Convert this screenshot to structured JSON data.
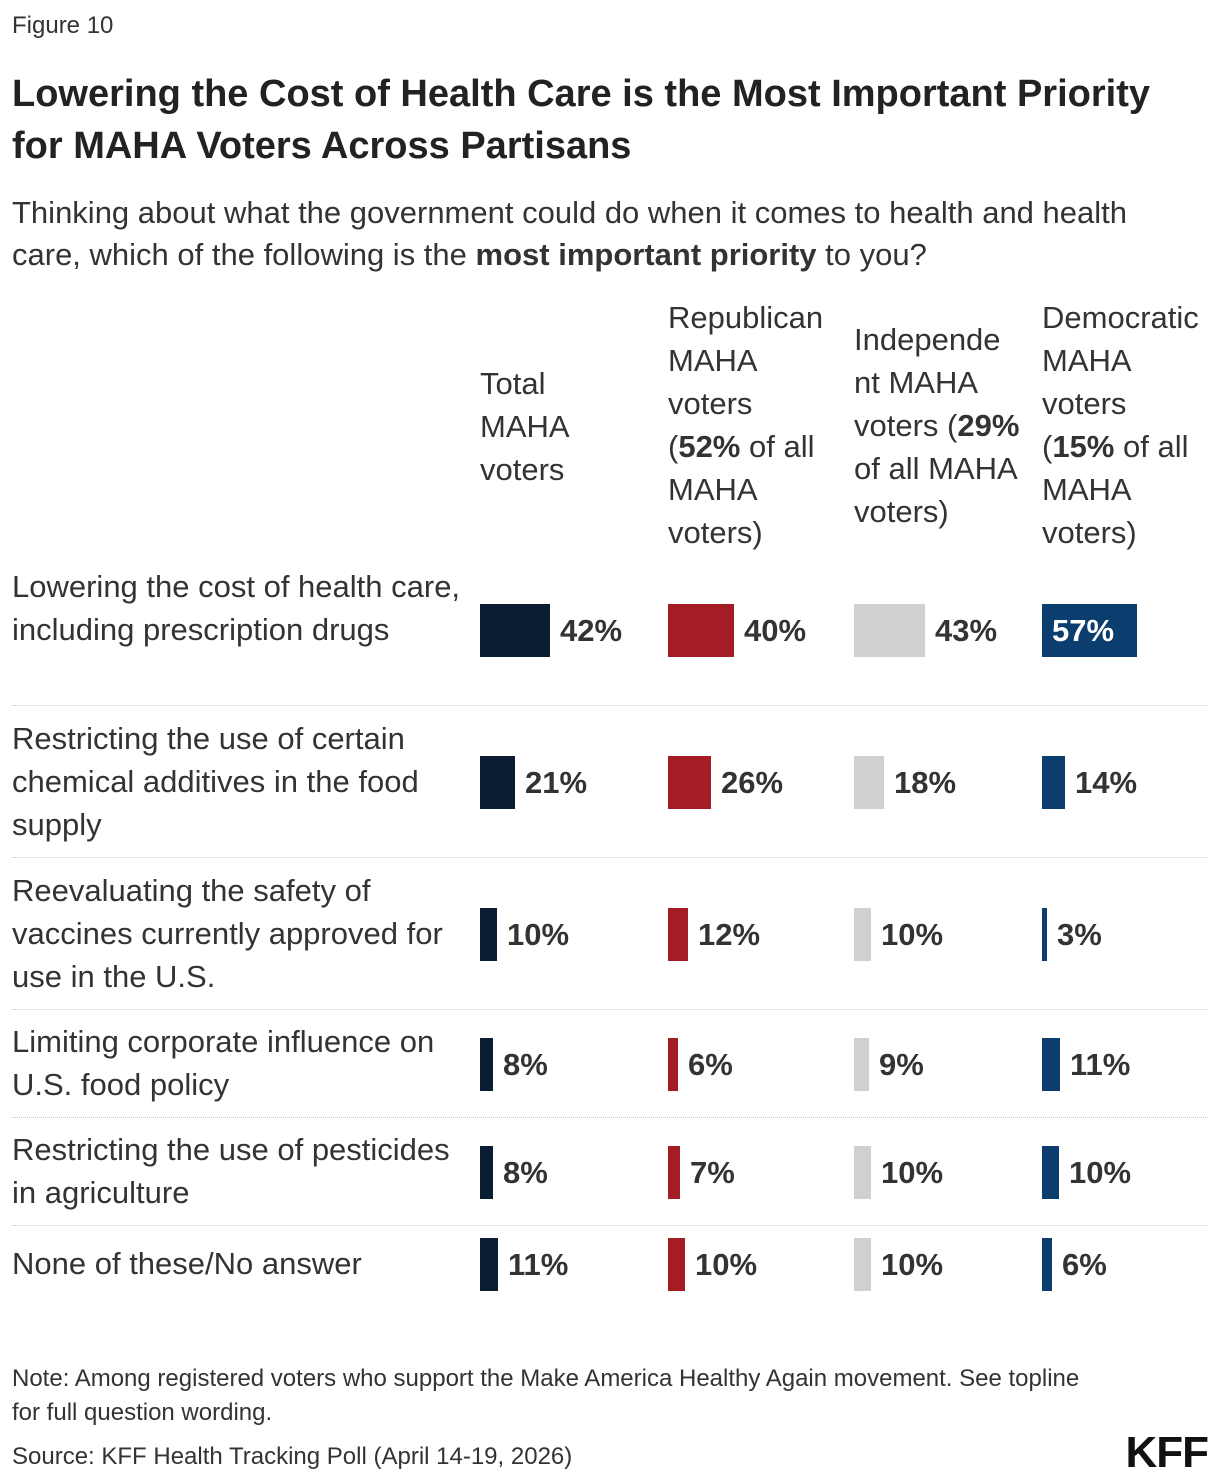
{
  "figure_label": "Figure 10",
  "title": "Lowering the Cost of Health Care is the Most Important Priority for MAHA Voters Across Partisans",
  "subtitle": "Thinking about what the government could do when it comes to health and health care, which of the following is the most important priority to you?",
  "subtitle_bold": "most important priority",
  "note": "Note: Among registered voters who support the Make America Healthy Again movement. See topline for full question wording.",
  "source": "Source: KFF Health Tracking Poll (April 14-19, 2026)",
  "logo": "KFF",
  "chart_data": {
    "type": "bar",
    "orientation": "horizontal",
    "value_suffix": "%",
    "xlim": [
      0,
      100
    ],
    "categories": [
      "Lowering the cost of health care, including prescription drugs",
      "Restricting the use of certain chemical additives in the food supply",
      "Reevaluating the safety of vaccines currently approved for use in the U.S.",
      "Limiting corporate influence on U.S. food policy",
      "Restricting the use of pesticides in agriculture",
      "None of these/No answer"
    ],
    "series": [
      {
        "name": "Total MAHA voters",
        "header_lines": [
          "Total",
          "MAHA",
          "voters"
        ],
        "color": "#0b1d33",
        "values": [
          42,
          21,
          10,
          8,
          8,
          11
        ]
      },
      {
        "name": "Republican MAHA voters (52% of all MAHA voters)",
        "header_lines": [
          "Republican",
          "MAHA",
          "voters",
          "(**52%** of all",
          "MAHA",
          "voters)"
        ],
        "color": "#a51c24",
        "values": [
          40,
          26,
          12,
          6,
          7,
          10
        ]
      },
      {
        "name": "Independent MAHA voters (29% of all MAHA voters)",
        "header_lines": [
          "Independe",
          "nt MAHA",
          "voters (**29%**",
          "of all MAHA",
          "voters)"
        ],
        "color": "#d0d0d0",
        "values": [
          43,
          18,
          10,
          9,
          10,
          10
        ]
      },
      {
        "name": "Democratic MAHA voters (15% of all MAHA voters)",
        "header_lines": [
          "Democratic",
          "MAHA",
          "voters",
          "(**15%** of all",
          "MAHA",
          "voters)"
        ],
        "color": "#0b3d6e",
        "values": [
          57,
          14,
          3,
          11,
          10,
          6
        ]
      }
    ],
    "grid": false,
    "legend": "column headers"
  }
}
